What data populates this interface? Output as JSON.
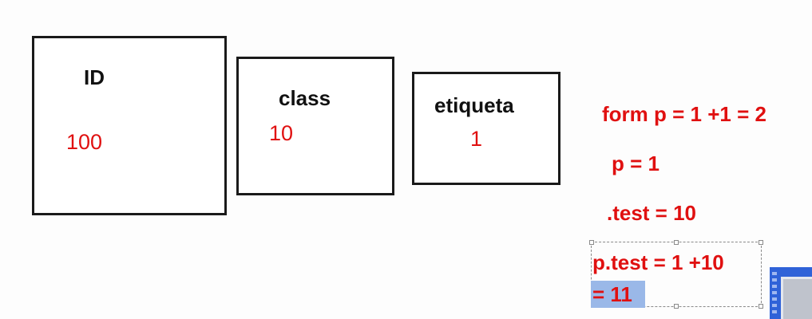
{
  "boxes": [
    {
      "label": "ID",
      "value": "100"
    },
    {
      "label": "class",
      "value": "10"
    },
    {
      "label": "etiqueta",
      "value": "1"
    }
  ],
  "notes": {
    "line1": "form p = 1 +1 = 2",
    "line2": "p = 1",
    "line3": ".test = 10",
    "line4": "p.test = 1 +10",
    "line5": "= 11"
  },
  "colors": {
    "value_red": "#e01010",
    "border": "#1a1a1a",
    "selection_highlight": "#9ab8e8"
  }
}
